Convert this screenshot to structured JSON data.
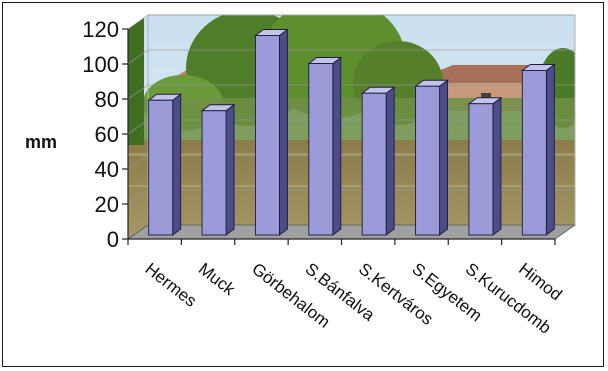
{
  "chart_data": {
    "type": "bar",
    "title": "",
    "xlabel": "",
    "ylabel": "mm",
    "categories": [
      "Hermes",
      "Muck",
      "Görbehalom",
      "S.Bánfalva",
      "S.Kertváros",
      "S.Egyetem",
      "S.Kurucdomb",
      "Himod"
    ],
    "values": [
      77,
      71,
      114,
      98,
      81,
      85,
      75,
      94
    ],
    "ylim": [
      0,
      120
    ],
    "yticks": [
      0,
      20,
      40,
      60,
      80,
      100,
      120
    ],
    "grid": true,
    "legend": "none",
    "style": "3d-column",
    "colors": {
      "bar_front": "#9b9bd9",
      "bar_top": "#c3c3ec",
      "bar_side": "#4c4c8a",
      "bar_outline": "#1c1c3a",
      "plot_background": "photo-of-flooded-village"
    }
  }
}
